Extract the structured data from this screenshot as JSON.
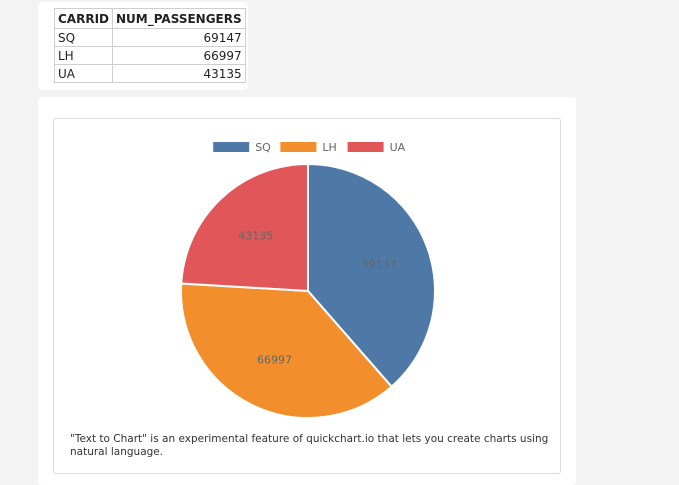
{
  "table": {
    "headers": [
      "CARRID",
      "NUM_PASSENGERS"
    ],
    "rows": [
      {
        "carrid": "SQ",
        "num_passengers": "69147"
      },
      {
        "carrid": "LH",
        "num_passengers": "66997"
      },
      {
        "carrid": "UA",
        "num_passengers": "43135"
      }
    ]
  },
  "chart_data": {
    "type": "pie",
    "categories": [
      "SQ",
      "LH",
      "UA"
    ],
    "values": [
      69147,
      66997,
      43135
    ],
    "colors": [
      "#4e79a7",
      "#f28e2b",
      "#e15759"
    ],
    "data_labels": [
      "69147",
      "66997",
      "43135"
    ],
    "legend_position": "top"
  },
  "footnote": "\"Text to Chart\" is an experimental feature of quickchart.io that lets you create charts using natural language."
}
